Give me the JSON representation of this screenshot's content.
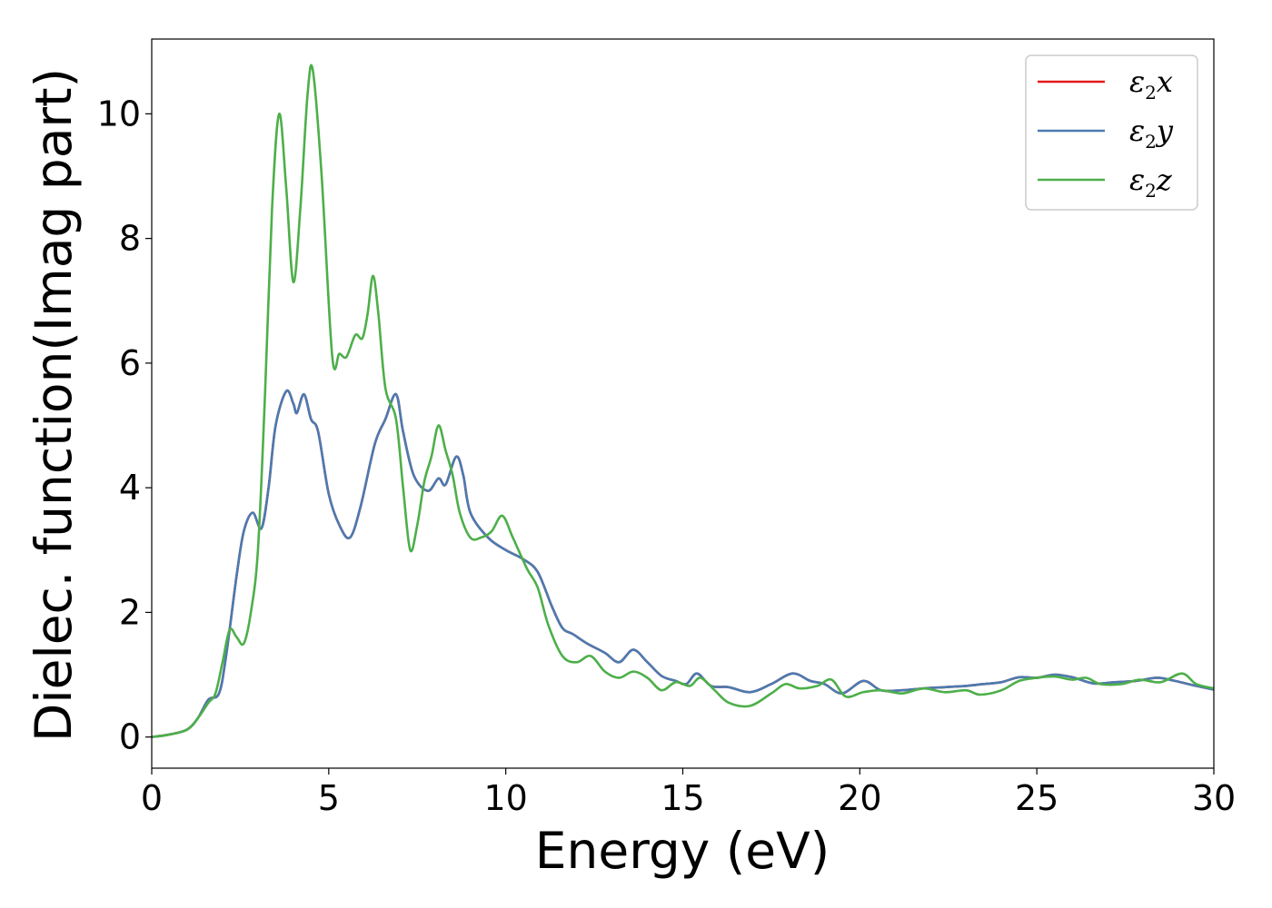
{
  "chart_data": {
    "type": "line",
    "xlabel": "Energy (eV)",
    "ylabel": "Dielec. function(Imag part)",
    "xlim": [
      0,
      30
    ],
    "ylim": [
      -0.5,
      11.2
    ],
    "xticks": [
      0,
      5,
      10,
      15,
      20,
      25,
      30
    ],
    "yticks": [
      0,
      2,
      4,
      6,
      8,
      10
    ],
    "grid": false,
    "legend_position": "top-right",
    "series": [
      {
        "name": "ε₂x",
        "legend_base": "ε",
        "legend_sub": "2",
        "legend_axis": "x",
        "color": "#e41a1c",
        "points": [
          [
            0,
            0
          ],
          [
            0.5,
            0.04
          ],
          [
            1,
            0.12
          ],
          [
            1.3,
            0.3
          ],
          [
            1.6,
            0.6
          ],
          [
            1.9,
            0.7
          ],
          [
            2.1,
            1.3
          ],
          [
            2.4,
            2.6
          ],
          [
            2.6,
            3.3
          ],
          [
            2.85,
            3.6
          ],
          [
            3.1,
            3.35
          ],
          [
            3.3,
            4.0
          ],
          [
            3.5,
            5.0
          ],
          [
            3.8,
            5.55
          ],
          [
            4.0,
            5.35
          ],
          [
            4.1,
            5.2
          ],
          [
            4.3,
            5.5
          ],
          [
            4.5,
            5.1
          ],
          [
            4.7,
            4.9
          ],
          [
            5.0,
            3.9
          ],
          [
            5.3,
            3.4
          ],
          [
            5.6,
            3.2
          ],
          [
            5.9,
            3.7
          ],
          [
            6.3,
            4.7
          ],
          [
            6.6,
            5.1
          ],
          [
            6.9,
            5.5
          ],
          [
            7.1,
            4.9
          ],
          [
            7.4,
            4.2
          ],
          [
            7.8,
            3.95
          ],
          [
            8.1,
            4.15
          ],
          [
            8.3,
            4.05
          ],
          [
            8.6,
            4.5
          ],
          [
            8.8,
            4.2
          ],
          [
            9.0,
            3.6
          ],
          [
            9.5,
            3.2
          ],
          [
            10.0,
            3.0
          ],
          [
            10.5,
            2.85
          ],
          [
            10.9,
            2.65
          ],
          [
            11.3,
            2.1
          ],
          [
            11.6,
            1.75
          ],
          [
            11.9,
            1.65
          ],
          [
            12.3,
            1.5
          ],
          [
            12.8,
            1.35
          ],
          [
            13.2,
            1.2
          ],
          [
            13.6,
            1.4
          ],
          [
            14.0,
            1.2
          ],
          [
            14.4,
            0.98
          ],
          [
            14.8,
            0.9
          ],
          [
            15.1,
            0.85
          ],
          [
            15.4,
            1.02
          ],
          [
            15.8,
            0.82
          ],
          [
            16.3,
            0.8
          ],
          [
            16.9,
            0.72
          ],
          [
            17.5,
            0.85
          ],
          [
            18.1,
            1.02
          ],
          [
            18.6,
            0.9
          ],
          [
            19.0,
            0.85
          ],
          [
            19.5,
            0.7
          ],
          [
            20.1,
            0.9
          ],
          [
            20.6,
            0.75
          ],
          [
            21.2,
            0.75
          ],
          [
            21.8,
            0.78
          ],
          [
            22.4,
            0.8
          ],
          [
            23.0,
            0.82
          ],
          [
            23.5,
            0.85
          ],
          [
            24.0,
            0.88
          ],
          [
            24.5,
            0.96
          ],
          [
            25.0,
            0.95
          ],
          [
            25.5,
            1.0
          ],
          [
            26.0,
            0.96
          ],
          [
            26.6,
            0.86
          ],
          [
            27.2,
            0.88
          ],
          [
            27.8,
            0.9
          ],
          [
            28.4,
            0.95
          ],
          [
            28.9,
            0.9
          ],
          [
            29.5,
            0.82
          ],
          [
            30.0,
            0.76
          ]
        ]
      },
      {
        "name": "ε₂y",
        "legend_base": "ε",
        "legend_sub": "2",
        "legend_axis": "y",
        "color": "#4a7bb0",
        "points": [
          [
            0,
            0
          ],
          [
            0.5,
            0.04
          ],
          [
            1,
            0.12
          ],
          [
            1.3,
            0.3
          ],
          [
            1.6,
            0.6
          ],
          [
            1.9,
            0.7
          ],
          [
            2.1,
            1.3
          ],
          [
            2.4,
            2.6
          ],
          [
            2.6,
            3.3
          ],
          [
            2.85,
            3.6
          ],
          [
            3.1,
            3.35
          ],
          [
            3.3,
            4.0
          ],
          [
            3.5,
            5.0
          ],
          [
            3.8,
            5.55
          ],
          [
            4.0,
            5.35
          ],
          [
            4.1,
            5.2
          ],
          [
            4.3,
            5.5
          ],
          [
            4.5,
            5.1
          ],
          [
            4.7,
            4.9
          ],
          [
            5.0,
            3.9
          ],
          [
            5.3,
            3.4
          ],
          [
            5.6,
            3.2
          ],
          [
            5.9,
            3.7
          ],
          [
            6.3,
            4.7
          ],
          [
            6.6,
            5.1
          ],
          [
            6.9,
            5.5
          ],
          [
            7.1,
            4.9
          ],
          [
            7.4,
            4.2
          ],
          [
            7.8,
            3.95
          ],
          [
            8.1,
            4.15
          ],
          [
            8.3,
            4.05
          ],
          [
            8.6,
            4.5
          ],
          [
            8.8,
            4.2
          ],
          [
            9.0,
            3.6
          ],
          [
            9.5,
            3.2
          ],
          [
            10.0,
            3.0
          ],
          [
            10.5,
            2.85
          ],
          [
            10.9,
            2.65
          ],
          [
            11.3,
            2.1
          ],
          [
            11.6,
            1.75
          ],
          [
            11.9,
            1.65
          ],
          [
            12.3,
            1.5
          ],
          [
            12.8,
            1.35
          ],
          [
            13.2,
            1.2
          ],
          [
            13.6,
            1.4
          ],
          [
            14.0,
            1.2
          ],
          [
            14.4,
            0.98
          ],
          [
            14.8,
            0.9
          ],
          [
            15.1,
            0.85
          ],
          [
            15.4,
            1.02
          ],
          [
            15.8,
            0.82
          ],
          [
            16.3,
            0.8
          ],
          [
            16.9,
            0.72
          ],
          [
            17.5,
            0.85
          ],
          [
            18.1,
            1.02
          ],
          [
            18.6,
            0.9
          ],
          [
            19.0,
            0.85
          ],
          [
            19.5,
            0.7
          ],
          [
            20.1,
            0.9
          ],
          [
            20.6,
            0.75
          ],
          [
            21.2,
            0.75
          ],
          [
            21.8,
            0.78
          ],
          [
            22.4,
            0.8
          ],
          [
            23.0,
            0.82
          ],
          [
            23.5,
            0.85
          ],
          [
            24.0,
            0.88
          ],
          [
            24.5,
            0.96
          ],
          [
            25.0,
            0.95
          ],
          [
            25.5,
            1.0
          ],
          [
            26.0,
            0.96
          ],
          [
            26.6,
            0.86
          ],
          [
            27.2,
            0.88
          ],
          [
            27.8,
            0.9
          ],
          [
            28.4,
            0.95
          ],
          [
            28.9,
            0.9
          ],
          [
            29.5,
            0.82
          ],
          [
            30.0,
            0.76
          ]
        ]
      },
      {
        "name": "ε₂z",
        "legend_base": "ε",
        "legend_sub": "2",
        "legend_axis": "z",
        "color": "#4daf4a",
        "points": [
          [
            0,
            0
          ],
          [
            0.5,
            0.04
          ],
          [
            1,
            0.12
          ],
          [
            1.3,
            0.3
          ],
          [
            1.6,
            0.55
          ],
          [
            1.8,
            0.7
          ],
          [
            2.0,
            1.2
          ],
          [
            2.2,
            1.72
          ],
          [
            2.4,
            1.6
          ],
          [
            2.6,
            1.5
          ],
          [
            2.8,
            2.0
          ],
          [
            3.0,
            3.0
          ],
          [
            3.2,
            5.5
          ],
          [
            3.4,
            8.5
          ],
          [
            3.6,
            10.0
          ],
          [
            3.8,
            8.8
          ],
          [
            4.0,
            7.3
          ],
          [
            4.2,
            8.5
          ],
          [
            4.4,
            10.3
          ],
          [
            4.55,
            10.7
          ],
          [
            4.8,
            9.0
          ],
          [
            5.1,
            6.1
          ],
          [
            5.3,
            6.15
          ],
          [
            5.5,
            6.1
          ],
          [
            5.75,
            6.45
          ],
          [
            5.95,
            6.4
          ],
          [
            6.1,
            6.8
          ],
          [
            6.25,
            7.4
          ],
          [
            6.4,
            6.8
          ],
          [
            6.6,
            5.6
          ],
          [
            6.9,
            5.1
          ],
          [
            7.1,
            4.0
          ],
          [
            7.3,
            3.0
          ],
          [
            7.5,
            3.4
          ],
          [
            7.7,
            4.1
          ],
          [
            7.9,
            4.5
          ],
          [
            8.1,
            5.0
          ],
          [
            8.3,
            4.6
          ],
          [
            8.5,
            4.2
          ],
          [
            8.7,
            3.6
          ],
          [
            9.0,
            3.2
          ],
          [
            9.3,
            3.2
          ],
          [
            9.6,
            3.3
          ],
          [
            9.9,
            3.55
          ],
          [
            10.2,
            3.2
          ],
          [
            10.6,
            2.7
          ],
          [
            10.9,
            2.4
          ],
          [
            11.2,
            1.8
          ],
          [
            11.6,
            1.3
          ],
          [
            12.0,
            1.2
          ],
          [
            12.4,
            1.3
          ],
          [
            12.8,
            1.05
          ],
          [
            13.2,
            0.95
          ],
          [
            13.6,
            1.05
          ],
          [
            14.0,
            0.95
          ],
          [
            14.4,
            0.75
          ],
          [
            14.8,
            0.88
          ],
          [
            15.2,
            0.82
          ],
          [
            15.5,
            0.95
          ],
          [
            15.9,
            0.75
          ],
          [
            16.3,
            0.55
          ],
          [
            16.9,
            0.5
          ],
          [
            17.5,
            0.7
          ],
          [
            17.9,
            0.85
          ],
          [
            18.3,
            0.78
          ],
          [
            18.8,
            0.82
          ],
          [
            19.2,
            0.92
          ],
          [
            19.6,
            0.65
          ],
          [
            20.1,
            0.72
          ],
          [
            20.6,
            0.75
          ],
          [
            21.2,
            0.7
          ],
          [
            21.8,
            0.78
          ],
          [
            22.4,
            0.72
          ],
          [
            23.0,
            0.75
          ],
          [
            23.4,
            0.68
          ],
          [
            24.0,
            0.75
          ],
          [
            24.5,
            0.9
          ],
          [
            25.0,
            0.95
          ],
          [
            25.5,
            0.97
          ],
          [
            26.0,
            0.92
          ],
          [
            26.4,
            0.95
          ],
          [
            26.8,
            0.85
          ],
          [
            27.4,
            0.85
          ],
          [
            27.9,
            0.92
          ],
          [
            28.5,
            0.88
          ],
          [
            29.1,
            1.02
          ],
          [
            29.5,
            0.85
          ],
          [
            30.0,
            0.78
          ]
        ]
      }
    ]
  }
}
